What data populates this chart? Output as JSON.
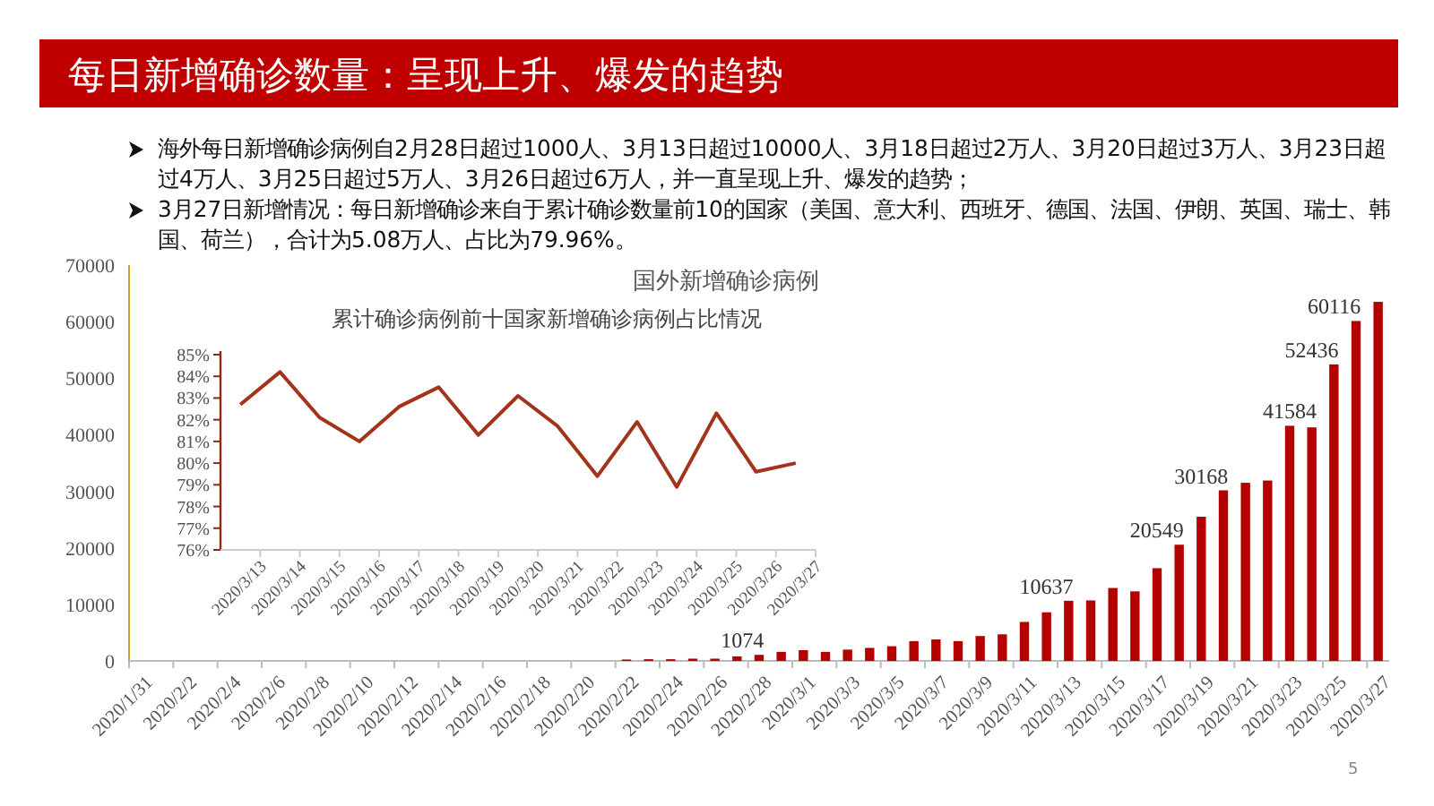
{
  "chart_data": [
    {
      "type": "other",
      "title": "每日新增确诊数量：呈现上升、爆发的趋势",
      "annotations": [
        "海外每日新增确诊病例自2月28日超过1000人、3月13日超过10000人、3月18日超过2万人、3月20日超过3万人、3月23日超过4万人、3月25日超过5万人、3月26日超过6万人，并一直呈现上升、爆发的趋势；",
        "3月27日新增情况：每日新增确诊来自于累计确诊数量前10的国家（美国、意大利、西班牙、德国、法国、伊朗、英国、瑞士、韩国、荷兰），合计为5.08万人、占比为79.96%。",
        "5"
      ]
    },
    {
      "type": "bar",
      "title": "国外新增确诊病例",
      "color": "#b50000",
      "categories": [
        "2020/1/31",
        null,
        "2020/2/2",
        null,
        "2020/2/4",
        null,
        "2020/2/6",
        null,
        "2020/2/8",
        null,
        "2020/2/10",
        null,
        "2020/2/12",
        null,
        "2020/2/14",
        null,
        "2020/2/16",
        null,
        "2020/2/18",
        null,
        "2020/2/20",
        null,
        "2020/2/22",
        null,
        "2020/2/24",
        null,
        "2020/2/26",
        null,
        "2020/2/28",
        null,
        "2020/3/1",
        null,
        "2020/3/3",
        null,
        "2020/3/5",
        null,
        "2020/3/7",
        null,
        "2020/3/9",
        null,
        "2020/3/11",
        null,
        "2020/3/13",
        null,
        "2020/3/15",
        null,
        "2020/3/17",
        null,
        "2020/3/19",
        null,
        "2020/3/21",
        null,
        "2020/3/23",
        null,
        "2020/3/25",
        null,
        "2020/3/27"
      ],
      "values": [
        null,
        null,
        null,
        null,
        null,
        null,
        null,
        null,
        null,
        null,
        null,
        null,
        null,
        null,
        null,
        null,
        null,
        null,
        null,
        null,
        null,
        null,
        250,
        300,
        300,
        400,
        400,
        800,
        1074,
        1600,
        1900,
        1600,
        2000,
        2300,
        2600,
        3500,
        3800,
        3500,
        4400,
        4700,
        6900,
        8600,
        10637,
        10700,
        12900,
        12300,
        16400,
        20549,
        25500,
        30168,
        31500,
        31900,
        41584,
        41300,
        52436,
        60116,
        63500
      ],
      "value_labels": [
        null,
        null,
        null,
        null,
        null,
        null,
        null,
        null,
        null,
        null,
        null,
        null,
        null,
        null,
        null,
        null,
        null,
        null,
        null,
        null,
        null,
        null,
        null,
        null,
        null,
        null,
        null,
        null,
        "1074",
        null,
        null,
        null,
        null,
        null,
        null,
        null,
        null,
        null,
        null,
        null,
        null,
        null,
        "10637",
        null,
        null,
        null,
        null,
        "20549",
        null,
        "30168",
        null,
        null,
        "41584",
        null,
        "52436",
        "60116",
        null
      ],
      "ylim": [
        0,
        70000
      ],
      "yticks": [
        0,
        10000,
        20000,
        30000,
        40000,
        50000,
        60000,
        70000
      ]
    },
    {
      "type": "line",
      "title": "累计确诊病例前十国家新增确诊病例占比情况",
      "categories": [
        "2020/3/13",
        "2020/3/14",
        "2020/3/15",
        "2020/3/16",
        "2020/3/17",
        "2020/3/18",
        "2020/3/19",
        "2020/3/20",
        "2020/3/21",
        "2020/3/22",
        "2020/3/23",
        "2020/3/24",
        "2020/3/25",
        "2020/3/26",
        "2020/3/27"
      ],
      "series": [
        {
          "color": "#a3331b",
          "values": [
            82.7,
            84.2,
            82.1,
            81.0,
            82.6,
            83.5,
            81.3,
            83.1,
            81.7,
            79.4,
            81.9,
            78.9,
            82.3,
            79.6,
            80.0
          ]
        }
      ],
      "ylim": [
        76,
        85
      ],
      "yticks": [
        {
          "value": 76,
          "label": "76%"
        },
        {
          "value": 77,
          "label": "77%"
        },
        {
          "value": 78,
          "label": "78%"
        },
        {
          "value": 79,
          "label": "79%"
        },
        {
          "value": 80,
          "label": "80%"
        },
        {
          "value": 81,
          "label": "81%"
        },
        {
          "value": 82,
          "label": "82%"
        },
        {
          "value": 83,
          "label": "83%"
        },
        {
          "value": 84,
          "label": "84%"
        },
        {
          "value": 85,
          "label": "85%"
        }
      ]
    }
  ]
}
